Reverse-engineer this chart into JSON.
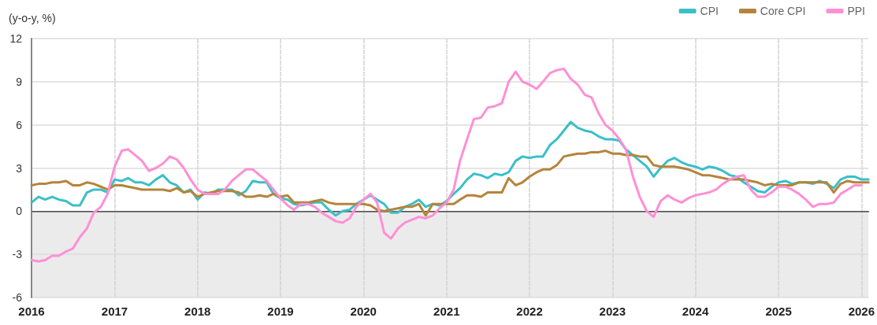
{
  "chart_data": {
    "type": "line",
    "ylabel": "(y-o-y, %)",
    "x": [
      "2016-01",
      "2016-02",
      "2016-03",
      "2016-04",
      "2016-05",
      "2016-06",
      "2016-07",
      "2016-08",
      "2016-09",
      "2016-10",
      "2016-11",
      "2016-12",
      "2017-01",
      "2017-02",
      "2017-03",
      "2017-04",
      "2017-05",
      "2017-06",
      "2017-07",
      "2017-08",
      "2017-09",
      "2017-10",
      "2017-11",
      "2017-12",
      "2018-01",
      "2018-02",
      "2018-03",
      "2018-04",
      "2018-05",
      "2018-06",
      "2018-07",
      "2018-08",
      "2018-09",
      "2018-10",
      "2018-11",
      "2018-12",
      "2019-01",
      "2019-02",
      "2019-03",
      "2019-04",
      "2019-05",
      "2019-06",
      "2019-07",
      "2019-08",
      "2019-09",
      "2019-10",
      "2019-11",
      "2019-12",
      "2020-01",
      "2020-02",
      "2020-03",
      "2020-04",
      "2020-05",
      "2020-06",
      "2020-07",
      "2020-08",
      "2020-09",
      "2020-10",
      "2020-11",
      "2020-12",
      "2021-01",
      "2021-02",
      "2021-03",
      "2021-04",
      "2021-05",
      "2021-06",
      "2021-07",
      "2021-08",
      "2021-09",
      "2021-10",
      "2021-11",
      "2021-12",
      "2022-01",
      "2022-02",
      "2022-03",
      "2022-04",
      "2022-05",
      "2022-06",
      "2022-07",
      "2022-08",
      "2022-09",
      "2022-10",
      "2022-11",
      "2022-12",
      "2023-01",
      "2023-02",
      "2023-03",
      "2023-04",
      "2023-05",
      "2023-06",
      "2023-07",
      "2023-08",
      "2023-09",
      "2023-10",
      "2023-11",
      "2023-12",
      "2024-01",
      "2024-02",
      "2024-03",
      "2024-04",
      "2024-05",
      "2024-06",
      "2024-07",
      "2024-08",
      "2024-09",
      "2024-10",
      "2024-11",
      "2024-12",
      "2025-01",
      "2025-02",
      "2025-03",
      "2025-04",
      "2025-05",
      "2025-06",
      "2025-07",
      "2025-08",
      "2025-09",
      "2025-10",
      "2025-11",
      "2025-12",
      "2026-01",
      "2026-02"
    ],
    "series": [
      {
        "name": "CPI",
        "color": "#3bbfc8",
        "values": [
          0.6,
          1.0,
          0.8,
          1.0,
          0.8,
          0.7,
          0.4,
          0.4,
          1.3,
          1.5,
          1.5,
          1.3,
          2.2,
          2.1,
          2.3,
          2.0,
          2.0,
          1.8,
          2.2,
          2.5,
          2.0,
          1.8,
          1.3,
          1.5,
          0.8,
          1.3,
          1.2,
          1.5,
          1.5,
          1.5,
          1.1,
          1.4,
          2.1,
          2.0,
          2.0,
          1.2,
          0.9,
          0.8,
          0.5,
          0.4,
          0.5,
          0.6,
          0.6,
          0.1,
          -0.3,
          0.0,
          0.1,
          0.5,
          0.8,
          1.1,
          0.8,
          0.5,
          -0.1,
          -0.1,
          0.3,
          0.5,
          0.8,
          0.3,
          0.5,
          0.4,
          0.7,
          1.2,
          1.6,
          2.2,
          2.6,
          2.5,
          2.3,
          2.6,
          2.5,
          2.7,
          3.5,
          3.8,
          3.7,
          3.8,
          3.8,
          4.6,
          5.0,
          5.6,
          6.2,
          5.8,
          5.6,
          5.5,
          5.2,
          5.0,
          5.0,
          4.9,
          4.3,
          3.9,
          3.5,
          3.1,
          2.4,
          3.0,
          3.5,
          3.7,
          3.4,
          3.2,
          3.1,
          2.9,
          3.1,
          3.0,
          2.8,
          2.5,
          2.4,
          2.0,
          1.7,
          1.4,
          1.3,
          1.7,
          2.0,
          2.1,
          1.9,
          2.0,
          2.0,
          1.9,
          2.1,
          1.9,
          1.6,
          2.2,
          2.4,
          2.4,
          2.2,
          2.2
        ]
      },
      {
        "name": "Core CPI",
        "color": "#b5843a",
        "values": [
          1.8,
          1.9,
          1.9,
          2.0,
          2.0,
          2.1,
          1.8,
          1.8,
          2.0,
          1.9,
          1.7,
          1.5,
          1.8,
          1.8,
          1.7,
          1.6,
          1.5,
          1.5,
          1.5,
          1.5,
          1.4,
          1.6,
          1.3,
          1.4,
          1.0,
          1.2,
          1.3,
          1.4,
          1.4,
          1.4,
          1.3,
          1.0,
          1.0,
          1.1,
          1.0,
          1.2,
          1.0,
          1.1,
          0.6,
          0.6,
          0.6,
          0.7,
          0.8,
          0.6,
          0.5,
          0.5,
          0.5,
          0.5,
          0.5,
          0.4,
          0.1,
          0.0,
          0.1,
          0.2,
          0.3,
          0.3,
          0.5,
          -0.3,
          0.5,
          0.5,
          0.5,
          0.5,
          0.8,
          1.1,
          1.1,
          1.0,
          1.3,
          1.3,
          1.3,
          2.3,
          1.8,
          2.0,
          2.4,
          2.7,
          2.9,
          2.9,
          3.2,
          3.8,
          3.9,
          4.0,
          4.0,
          4.1,
          4.1,
          4.2,
          4.0,
          4.0,
          3.9,
          3.9,
          3.8,
          3.8,
          3.2,
          3.1,
          3.1,
          3.1,
          3.0,
          2.9,
          2.7,
          2.5,
          2.5,
          2.4,
          2.3,
          2.2,
          2.2,
          2.2,
          2.1,
          2.0,
          1.8,
          1.9,
          1.8,
          1.8,
          1.8,
          2.0,
          2.0,
          2.0,
          2.0,
          2.0,
          1.3,
          1.9,
          2.1,
          2.0,
          2.0,
          2.0
        ]
      },
      {
        "name": "PPI",
        "color": "#ff8fd5",
        "values": [
          -3.4,
          -3.5,
          -3.4,
          -3.1,
          -3.1,
          -2.8,
          -2.6,
          -1.8,
          -1.2,
          -0.1,
          0.3,
          1.2,
          3.1,
          4.2,
          4.3,
          3.9,
          3.5,
          2.8,
          3.0,
          3.3,
          3.8,
          3.6,
          3.0,
          2.2,
          1.5,
          1.2,
          1.2,
          1.2,
          1.5,
          2.1,
          2.5,
          2.9,
          2.9,
          2.5,
          2.1,
          1.5,
          0.9,
          0.4,
          0.1,
          0.5,
          0.5,
          0.3,
          -0.1,
          -0.4,
          -0.7,
          -0.8,
          -0.5,
          0.3,
          0.8,
          1.2,
          0.6,
          -1.5,
          -1.9,
          -1.2,
          -0.8,
          -0.6,
          -0.4,
          -0.5,
          -0.3,
          0.2,
          0.6,
          1.5,
          3.5,
          5.0,
          6.4,
          6.5,
          7.2,
          7.3,
          7.5,
          9.0,
          9.7,
          9.0,
          8.8,
          8.5,
          9.0,
          9.6,
          9.8,
          9.9,
          9.2,
          8.8,
          8.1,
          7.9,
          6.8,
          6.0,
          5.6,
          5.0,
          4.3,
          2.4,
          1.0,
          0.0,
          -0.4,
          0.7,
          1.1,
          0.8,
          0.6,
          0.9,
          1.1,
          1.2,
          1.3,
          1.5,
          1.9,
          2.2,
          2.4,
          2.5,
          1.5,
          1.0,
          1.0,
          1.3,
          1.7,
          1.7,
          1.5,
          1.2,
          0.8,
          0.3,
          0.5,
          0.5,
          0.6,
          1.2,
          1.5,
          1.8,
          1.8,
          null
        ]
      }
    ],
    "xlim": [
      "2016-01",
      "2026-02"
    ],
    "xticks": [
      "2016",
      "2017",
      "2018",
      "2019",
      "2020",
      "2021",
      "2022",
      "2023",
      "2024",
      "2025",
      "2026"
    ],
    "ylim": [
      -6,
      12
    ],
    "yticks": [
      -6,
      -3,
      0,
      3,
      6,
      9,
      12
    ],
    "bands": [
      {
        "axis": "y",
        "from": -6,
        "to": 0,
        "color": "#ebebeb"
      }
    ],
    "ref_lines": [
      {
        "axis": "y",
        "value": 0,
        "color": "#555555"
      }
    ],
    "grid": true,
    "legend": "top right",
    "line_style": "solid",
    "marker": "none"
  }
}
